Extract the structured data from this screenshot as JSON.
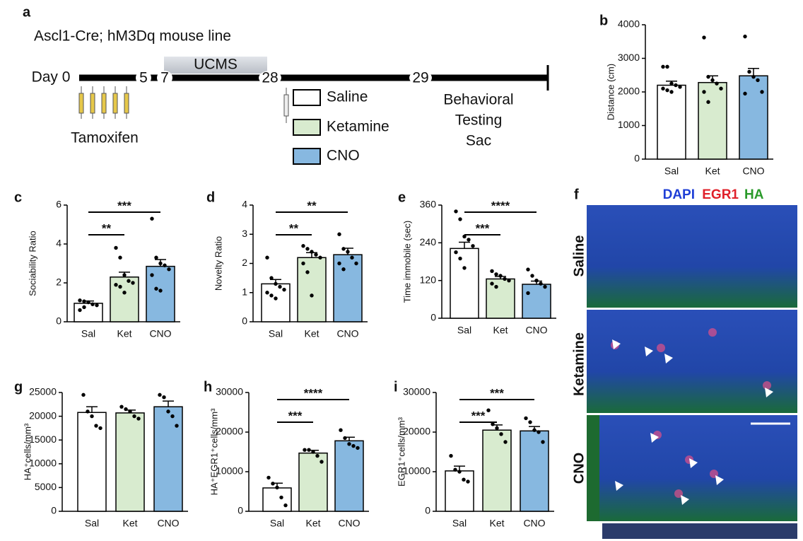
{
  "timeline": {
    "panel": "a",
    "title": "Ascl1-Cre; hM3Dq mouse line",
    "day_label": "Day 0",
    "days": [
      "5",
      "7",
      "28",
      "29"
    ],
    "period": "UCMS",
    "injection": "Tamoxifen",
    "groups": [
      "Saline",
      "Ketamine",
      "CNO"
    ],
    "outcome": [
      "Behavioral",
      "Testing",
      "Sac"
    ]
  },
  "micrograph": {
    "panel": "f",
    "stains": [
      "DAPI",
      "EGR1",
      "HA"
    ],
    "rows": [
      "Saline",
      "Ketamine",
      "CNO"
    ]
  },
  "chart_data": [
    {
      "type": "bar",
      "panel": "b",
      "ylabel": "Distance (cm)",
      "categories": [
        "Sal",
        "Ket",
        "CNO"
      ],
      "colors": [
        "#ffffff",
        "#d8ebcf",
        "#87b8e0"
      ],
      "values": [
        2200,
        2280,
        2480
      ],
      "errors": [
        120,
        200,
        220
      ],
      "points": [
        [
          2750,
          2750,
          2250,
          2200,
          2150,
          2100,
          2050,
          2000
        ],
        [
          3620,
          2450,
          2350,
          2250,
          2100,
          2000,
          1700
        ],
        [
          3650,
          2600,
          2450,
          2350,
          2000,
          1950
        ]
      ],
      "ylim": [
        0,
        4000
      ],
      "yticks": [
        0,
        1000,
        2000,
        3000,
        4000
      ],
      "significance": []
    },
    {
      "type": "bar",
      "panel": "c",
      "ylabel": "Sociability Ratio",
      "categories": [
        "Sal",
        "Ket",
        "CNO"
      ],
      "colors": [
        "#ffffff",
        "#d8ebcf",
        "#87b8e0"
      ],
      "values": [
        0.95,
        2.3,
        2.85
      ],
      "errors": [
        0.12,
        0.25,
        0.35
      ],
      "points": [
        [
          1.1,
          1.05,
          1.0,
          0.9,
          0.85,
          0.6,
          0.75
        ],
        [
          3.8,
          3.3,
          2.4,
          2.1,
          2.0,
          1.9,
          1.8,
          1.5
        ],
        [
          5.3,
          3.3,
          3.0,
          2.9,
          2.7,
          2.4,
          1.7,
          1.6
        ]
      ],
      "ylim": [
        0,
        6
      ],
      "yticks": [
        0,
        2,
        4,
        6
      ],
      "significance": [
        {
          "from": 0,
          "to": 1,
          "label": "**"
        },
        {
          "from": 0,
          "to": 2,
          "label": "***"
        }
      ]
    },
    {
      "type": "bar",
      "panel": "d",
      "ylabel": "Novelty Ratio",
      "categories": [
        "Sal",
        "Ket",
        "CNO"
      ],
      "colors": [
        "#ffffff",
        "#d8ebcf",
        "#87b8e0"
      ],
      "values": [
        1.3,
        2.2,
        2.3
      ],
      "errors": [
        0.15,
        0.17,
        0.22
      ],
      "points": [
        [
          2.2,
          1.5,
          1.3,
          1.2,
          1.1,
          1.0,
          0.9,
          0.8
        ],
        [
          2.6,
          2.5,
          2.4,
          2.3,
          2.2,
          2.0,
          1.7,
          0.9
        ],
        [
          3.0,
          2.5,
          2.4,
          2.2,
          2.0,
          2.0,
          1.8
        ]
      ],
      "ylim": [
        0,
        4
      ],
      "yticks": [
        0,
        1,
        2,
        3,
        4
      ],
      "significance": [
        {
          "from": 0,
          "to": 1,
          "label": "**"
        },
        {
          "from": 0,
          "to": 2,
          "label": "**"
        }
      ]
    },
    {
      "type": "bar",
      "panel": "e",
      "ylabel": "Time immobile (sec)",
      "categories": [
        "Sal",
        "Ket",
        "CNO"
      ],
      "colors": [
        "#ffffff",
        "#d8ebcf",
        "#87b8e0"
      ],
      "values": [
        222,
        125,
        108
      ],
      "errors": [
        20,
        8,
        10
      ],
      "points": [
        [
          340,
          315,
          260,
          250,
          230,
          210,
          190,
          160
        ],
        [
          150,
          140,
          135,
          125,
          120,
          110,
          100
        ],
        [
          155,
          135,
          120,
          110,
          100,
          80
        ]
      ],
      "ylim": [
        0,
        360
      ],
      "yticks": [
        0,
        120,
        240,
        360
      ],
      "significance": [
        {
          "from": 0,
          "to": 1,
          "label": "***"
        },
        {
          "from": 0,
          "to": 2,
          "label": "****"
        }
      ]
    },
    {
      "type": "bar",
      "panel": "g",
      "ylabel": "HA⁺cells/mm³",
      "categories": [
        "Sal",
        "Ket",
        "CNO"
      ],
      "colors": [
        "#ffffff",
        "#d8ebcf",
        "#87b8e0"
      ],
      "values": [
        20800,
        20700,
        22000
      ],
      "errors": [
        1200,
        600,
        1200
      ],
      "points": [
        [
          24500,
          21000,
          20000,
          18000,
          17500
        ],
        [
          22000,
          21500,
          21000,
          20000,
          19500
        ],
        [
          24500,
          24000,
          21000,
          20000,
          18000
        ]
      ],
      "ylim": [
        0,
        25000
      ],
      "yticks": [
        0,
        5000,
        10000,
        15000,
        20000,
        25000
      ],
      "significance": []
    },
    {
      "type": "bar",
      "panel": "h",
      "ylabel": "HA⁺EGR1⁺cells/mm³",
      "categories": [
        "Sal",
        "Ket",
        "CNO"
      ],
      "colors": [
        "#ffffff",
        "#d8ebcf",
        "#87b8e0"
      ],
      "values": [
        5900,
        14700,
        17800
      ],
      "errors": [
        1200,
        700,
        900
      ],
      "points": [
        [
          8500,
          7000,
          6000,
          3500,
          1500
        ],
        [
          15500,
          15500,
          15000,
          14000,
          12500
        ],
        [
          20500,
          18500,
          17000,
          16500,
          16000
        ]
      ],
      "ylim": [
        0,
        30000
      ],
      "yticks": [
        0,
        10000,
        20000,
        30000
      ],
      "significance": [
        {
          "from": 0,
          "to": 1,
          "label": "***"
        },
        {
          "from": 0,
          "to": 2,
          "label": "****"
        }
      ]
    },
    {
      "type": "bar",
      "panel": "i",
      "ylabel": "EGR1⁺cells/mm³",
      "categories": [
        "Sal",
        "Ket",
        "CNO"
      ],
      "colors": [
        "#ffffff",
        "#d8ebcf",
        "#87b8e0"
      ],
      "values": [
        10200,
        20500,
        20300
      ],
      "errors": [
        1200,
        1300,
        1100
      ],
      "points": [
        [
          14000,
          10500,
          10000,
          8000,
          7500
        ],
        [
          25500,
          22000,
          21000,
          19500,
          17500
        ],
        [
          23500,
          22500,
          20500,
          20000,
          17500
        ]
      ],
      "ylim": [
        0,
        30000
      ],
      "yticks": [
        0,
        10000,
        20000,
        30000
      ],
      "significance": [
        {
          "from": 0,
          "to": 1,
          "label": "***"
        },
        {
          "from": 0,
          "to": 2,
          "label": "***"
        }
      ]
    }
  ]
}
